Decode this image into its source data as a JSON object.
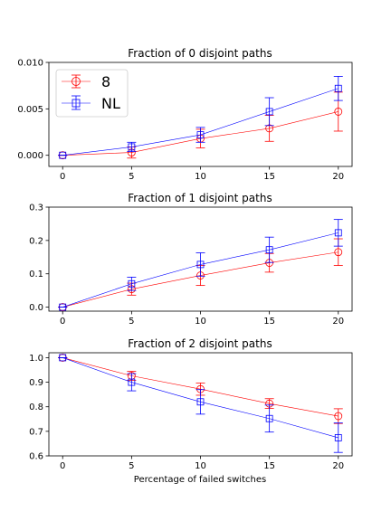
{
  "chart_data": [
    {
      "type": "line",
      "title": "Fraction of 0 disjoint paths",
      "xlabel": "",
      "ylabel": "",
      "x": [
        0,
        5,
        10,
        15,
        20
      ],
      "xticks": [
        "0",
        "5",
        "10",
        "15",
        "20"
      ],
      "xlim": [
        -1,
        21
      ],
      "ylim": [
        -0.0012,
        0.01
      ],
      "yticks": [
        {
          "value": 0.0,
          "label": "0.000"
        },
        {
          "value": 0.005,
          "label": "0.005"
        },
        {
          "value": 0.01,
          "label": "0.010"
        }
      ],
      "legend": {
        "placement": "upper-left"
      },
      "series": [
        {
          "name": "8",
          "color": "#ff0000",
          "marker": "circle",
          "values": [
            0.0,
            0.0003,
            0.0018,
            0.0029,
            0.0047
          ],
          "errors": [
            0.0,
            0.0006,
            0.001,
            0.0014,
            0.0021
          ]
        },
        {
          "name": "NL",
          "color": "#0000ff",
          "marker": "square",
          "values": [
            0.0,
            0.0009,
            0.0022,
            0.0047,
            0.0072
          ],
          "errors": [
            0.0,
            0.0005,
            0.0008,
            0.0015,
            0.0013
          ]
        }
      ]
    },
    {
      "type": "line",
      "title": "Fraction of 1 disjoint paths",
      "xlabel": "",
      "ylabel": "",
      "x": [
        0,
        5,
        10,
        15,
        20
      ],
      "xticks": [
        "0",
        "5",
        "10",
        "15",
        "20"
      ],
      "xlim": [
        -1,
        21
      ],
      "ylim": [
        -0.012,
        0.3
      ],
      "yticks": [
        {
          "value": 0.0,
          "label": "0.0"
        },
        {
          "value": 0.1,
          "label": "0.1"
        },
        {
          "value": 0.2,
          "label": "0.2"
        },
        {
          "value": 0.3,
          "label": "0.3"
        }
      ],
      "series": [
        {
          "name": "8",
          "color": "#ff0000",
          "marker": "circle",
          "values": [
            0.0,
            0.054,
            0.095,
            0.133,
            0.165
          ],
          "errors": [
            0.0,
            0.018,
            0.03,
            0.028,
            0.04
          ]
        },
        {
          "name": "NL",
          "color": "#0000ff",
          "marker": "square",
          "values": [
            0.0,
            0.07,
            0.128,
            0.172,
            0.223
          ],
          "errors": [
            0.0,
            0.02,
            0.035,
            0.038,
            0.04
          ]
        }
      ]
    },
    {
      "type": "line",
      "title": "Fraction of 2 disjoint paths",
      "xlabel": "Percentage of failed switches",
      "ylabel": "",
      "x": [
        0,
        5,
        10,
        15,
        20
      ],
      "xticks": [
        "0",
        "5",
        "10",
        "15",
        "20"
      ],
      "xlim": [
        -1,
        21
      ],
      "ylim": [
        0.6,
        1.02
      ],
      "yticks": [
        {
          "value": 0.6,
          "label": "0.6"
        },
        {
          "value": 0.7,
          "label": "0.7"
        },
        {
          "value": 0.8,
          "label": "0.8"
        },
        {
          "value": 0.9,
          "label": "0.9"
        },
        {
          "value": 1.0,
          "label": "1.0"
        }
      ],
      "series": [
        {
          "name": "8",
          "color": "#ff0000",
          "marker": "circle",
          "values": [
            1.0,
            0.926,
            0.872,
            0.813,
            0.762
          ],
          "errors": [
            0.0,
            0.018,
            0.025,
            0.02,
            0.03
          ]
        },
        {
          "name": "NL",
          "color": "#0000ff",
          "marker": "square",
          "values": [
            1.0,
            0.9,
            0.82,
            0.752,
            0.674
          ],
          "errors": [
            0.0,
            0.035,
            0.05,
            0.055,
            0.06
          ]
        }
      ]
    }
  ]
}
